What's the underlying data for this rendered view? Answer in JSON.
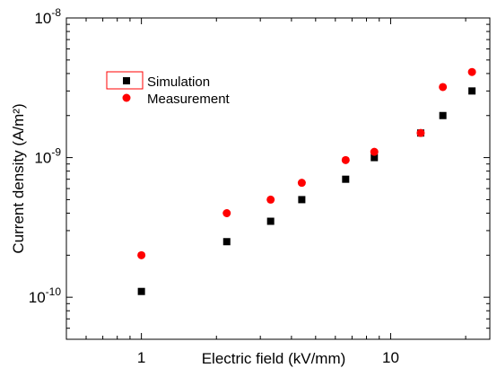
{
  "chart_data": {
    "type": "scatter",
    "title": "",
    "xlabel": "Electric field (kV/mm)",
    "ylabel": "Current density (A/m²)",
    "x_scale": "log",
    "y_scale": "log",
    "xlim": [
      0.5,
      25
    ],
    "ylim": [
      5e-11,
      1e-08
    ],
    "x_ticks": [
      {
        "value": 1,
        "label": "1"
      },
      {
        "value": 10,
        "label": "10"
      }
    ],
    "y_ticks": [
      {
        "value": 1e-10,
        "base": "10",
        "exp": "-10"
      },
      {
        "value": 1e-09,
        "base": "10",
        "exp": "-9"
      },
      {
        "value": 1e-08,
        "base": "10",
        "exp": "-8"
      }
    ],
    "grid": false,
    "legend_position": "upper-left",
    "series": [
      {
        "name": "Simulation",
        "marker": "square",
        "color": "#000000",
        "x": [
          1.0,
          2.2,
          3.3,
          4.4,
          6.6,
          8.6,
          13.2,
          16.2,
          21.2
        ],
        "y": [
          1.1e-10,
          2.5e-10,
          3.5e-10,
          5e-10,
          7e-10,
          1e-09,
          1.5e-09,
          2e-09,
          3e-09
        ]
      },
      {
        "name": "Measurement",
        "marker": "circle",
        "color": "#ff0000",
        "x": [
          1.0,
          2.2,
          3.3,
          4.4,
          6.6,
          8.6,
          13.2,
          16.2,
          21.2
        ],
        "y": [
          2e-10,
          4e-10,
          5e-10,
          6.6e-10,
          9.6e-10,
          1.1e-09,
          1.5e-09,
          3.2e-09,
          4.1e-09
        ]
      }
    ],
    "legend_highlight_color": "#ff0000"
  }
}
